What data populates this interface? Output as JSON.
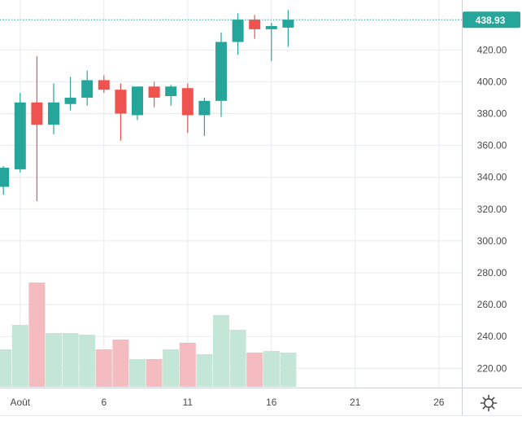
{
  "chart_data": {
    "type": "candlestick",
    "x_ticks": [
      "Août",
      "6",
      "11",
      "16",
      "21",
      "26"
    ],
    "y_ticks": [
      220,
      240,
      260,
      280,
      300,
      320,
      340,
      360,
      380,
      400,
      420
    ],
    "ylim": [
      210,
      443
    ],
    "grid": true,
    "last_price": "438.93",
    "colors": {
      "up": "#26a69a",
      "down": "#ef5350",
      "up_volume": "#c3e6d6",
      "down_volume": "#f4bcc0",
      "price_line": "#26a69a"
    },
    "candles": [
      {
        "date": "Jul 31",
        "open": 334,
        "high": 347,
        "low": 329,
        "close": 346
      },
      {
        "date": "Aug 1",
        "open": 345,
        "high": 393,
        "low": 343,
        "close": 387
      },
      {
        "date": "Aug 2",
        "open": 387,
        "high": 416,
        "low": 325,
        "close": 373
      },
      {
        "date": "Aug 3",
        "open": 373,
        "high": 399,
        "low": 367,
        "close": 387
      },
      {
        "date": "Aug 4",
        "open": 386,
        "high": 403,
        "low": 382,
        "close": 390
      },
      {
        "date": "Aug 5",
        "open": 390,
        "high": 407,
        "low": 385,
        "close": 401
      },
      {
        "date": "Aug 6",
        "open": 401,
        "high": 404,
        "low": 393,
        "close": 395
      },
      {
        "date": "Aug 7",
        "open": 395,
        "high": 399,
        "low": 363,
        "close": 380
      },
      {
        "date": "Aug 8",
        "open": 379,
        "high": 397,
        "low": 376,
        "close": 397
      },
      {
        "date": "Aug 9",
        "open": 397,
        "high": 400,
        "low": 384,
        "close": 390
      },
      {
        "date": "Aug 10",
        "open": 391,
        "high": 398,
        "low": 385,
        "close": 397
      },
      {
        "date": "Aug 11",
        "open": 396,
        "high": 399,
        "low": 368,
        "close": 379
      },
      {
        "date": "Aug 12",
        "open": 379,
        "high": 390,
        "low": 366,
        "close": 388
      },
      {
        "date": "Aug 13",
        "open": 388,
        "high": 431,
        "low": 378,
        "close": 425
      },
      {
        "date": "Aug 14",
        "open": 425,
        "high": 443,
        "low": 417,
        "close": 439
      },
      {
        "date": "Aug 15",
        "open": 439,
        "high": 442,
        "low": 427,
        "close": 433
      },
      {
        "date": "Aug 16",
        "open": 433,
        "high": 437,
        "low": 413,
        "close": 435
      },
      {
        "date": "Aug 17",
        "open": 434,
        "high": 445,
        "low": 422,
        "close": 439
      }
    ],
    "volumes": [
      {
        "date": "Jul 31",
        "volume": 23,
        "direction": "up"
      },
      {
        "date": "Aug 1",
        "volume": 38,
        "direction": "up"
      },
      {
        "date": "Aug 2",
        "volume": 64,
        "direction": "down"
      },
      {
        "date": "Aug 3",
        "volume": 33,
        "direction": "up"
      },
      {
        "date": "Aug 4",
        "volume": 33,
        "direction": "up"
      },
      {
        "date": "Aug 5",
        "volume": 32,
        "direction": "up"
      },
      {
        "date": "Aug 6",
        "volume": 23,
        "direction": "down"
      },
      {
        "date": "Aug 7",
        "volume": 29,
        "direction": "down"
      },
      {
        "date": "Aug 8",
        "volume": 17,
        "direction": "up"
      },
      {
        "date": "Aug 9",
        "volume": 17,
        "direction": "down"
      },
      {
        "date": "Aug 10",
        "volume": 23,
        "direction": "up"
      },
      {
        "date": "Aug 11",
        "volume": 27,
        "direction": "down"
      },
      {
        "date": "Aug 12",
        "volume": 20,
        "direction": "up"
      },
      {
        "date": "Aug 13",
        "volume": 44,
        "direction": "up"
      },
      {
        "date": "Aug 14",
        "volume": 35,
        "direction": "up"
      },
      {
        "date": "Aug 15",
        "volume": 21,
        "direction": "down"
      },
      {
        "date": "Aug 16",
        "volume": 22,
        "direction": "up"
      },
      {
        "date": "Aug 17",
        "volume": 21,
        "direction": "up"
      }
    ]
  }
}
